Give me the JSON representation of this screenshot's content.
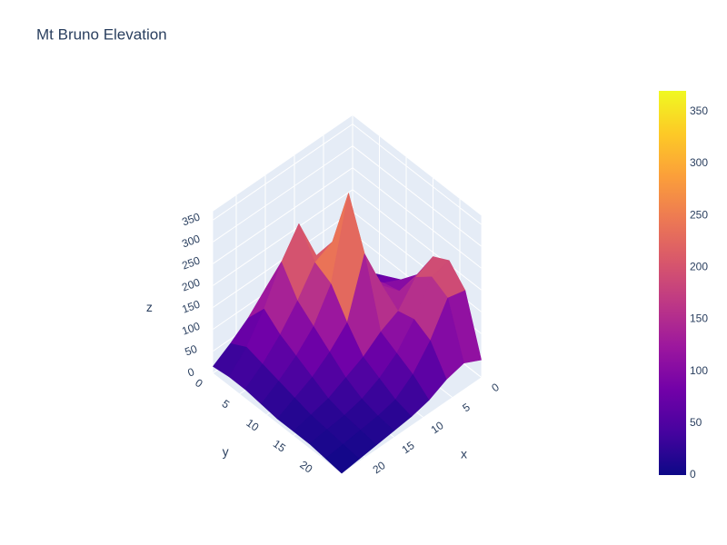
{
  "chart_data": {
    "type": "surface",
    "title": "Mt Bruno Elevation",
    "x": [
      0,
      3,
      6,
      9,
      12,
      15,
      18,
      21,
      24
    ],
    "y": [
      0,
      3,
      6,
      9,
      12,
      15,
      18,
      21,
      24
    ],
    "z": [
      [
        20,
        30,
        60,
        100,
        150,
        110,
        70,
        40,
        15
      ],
      [
        40,
        60,
        100,
        160,
        260,
        200,
        120,
        60,
        20
      ],
      [
        60,
        80,
        120,
        220,
        200,
        140,
        90,
        50,
        20
      ],
      [
        80,
        100,
        140,
        360,
        180,
        110,
        70,
        40,
        15
      ],
      [
        120,
        110,
        150,
        250,
        120,
        80,
        50,
        30,
        10
      ],
      [
        190,
        170,
        120,
        100,
        70,
        50,
        30,
        20,
        10
      ],
      [
        210,
        200,
        130,
        80,
        50,
        30,
        20,
        15,
        10
      ],
      [
        170,
        180,
        110,
        60,
        30,
        20,
        15,
        10,
        5
      ],
      [
        40,
        60,
        50,
        30,
        20,
        15,
        10,
        5,
        0
      ]
    ],
    "xaxis_title": "x",
    "yaxis_title": "y",
    "zaxis_title": "z",
    "xlim": [
      0,
      24
    ],
    "ylim": [
      0,
      24
    ],
    "zlim": [
      0,
      370
    ],
    "xticks": [
      0,
      5,
      10,
      15,
      20
    ],
    "yticks": [
      0,
      5,
      10,
      15,
      20
    ],
    "zticks": [
      0,
      50,
      100,
      150,
      200,
      250,
      300,
      350
    ],
    "colorscale": [
      "#0d0887",
      "#46039f",
      "#7201a8",
      "#9c179e",
      "#bd3786",
      "#d8576b",
      "#ed7953",
      "#fb9f3a",
      "#fdca26",
      "#f0f921"
    ],
    "colorbar": {
      "range": [
        0,
        370
      ],
      "ticks": [
        0,
        50,
        100,
        150,
        200,
        250,
        300,
        350
      ]
    },
    "grid": true
  }
}
